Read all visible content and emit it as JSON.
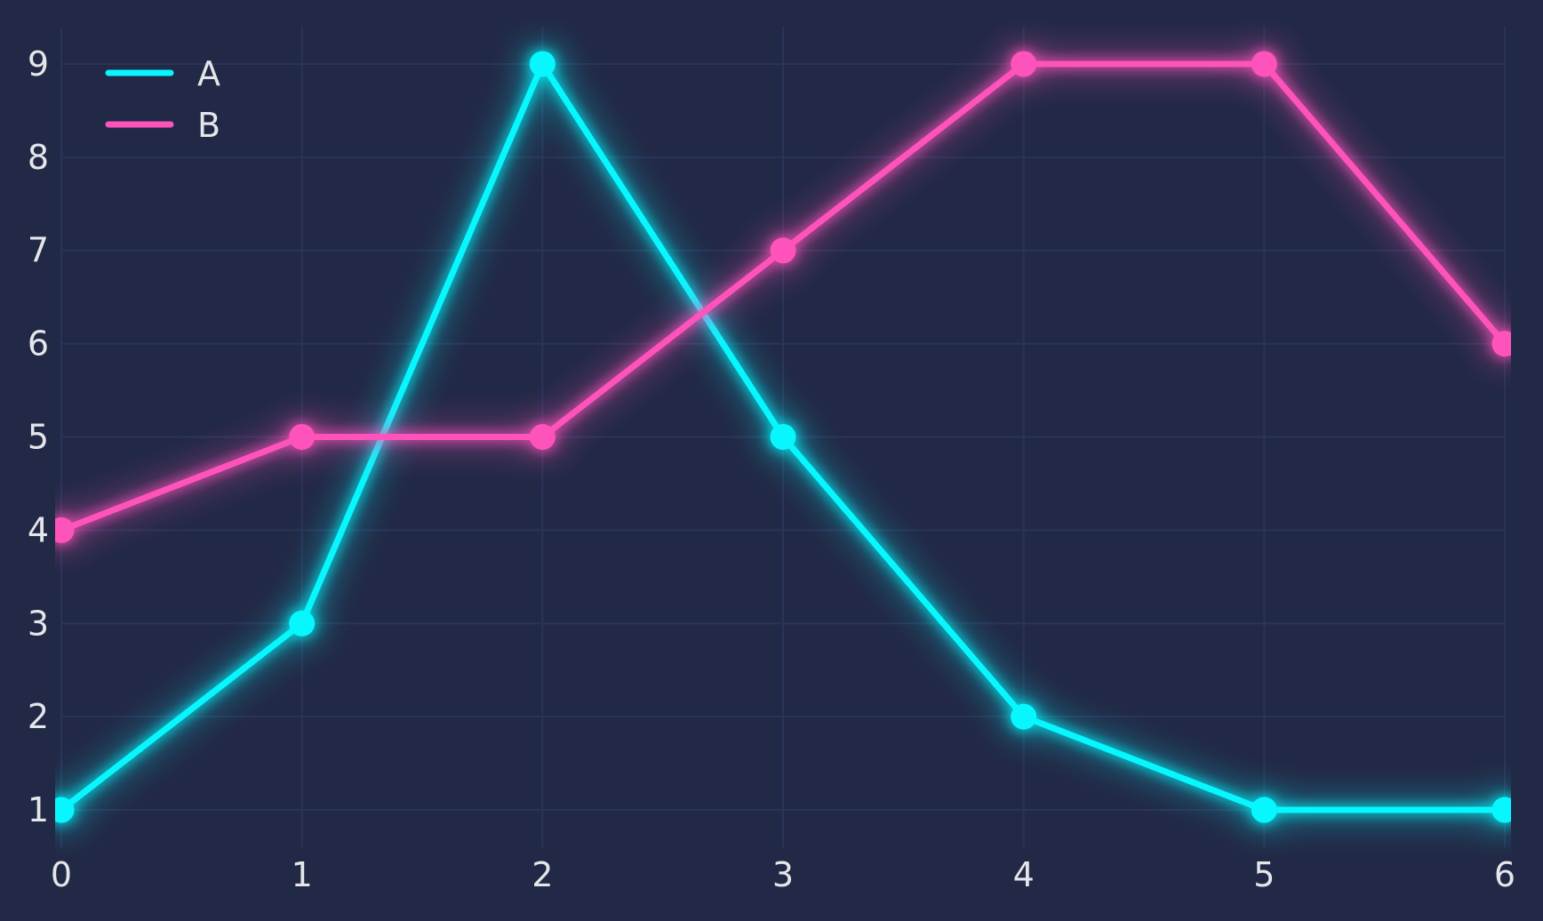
{
  "chart_data": {
    "type": "line",
    "title": "",
    "xlabel": "",
    "ylabel": "",
    "x": [
      0,
      1,
      2,
      3,
      4,
      5,
      6
    ],
    "series": [
      {
        "name": "A",
        "color": "#08F7FE",
        "values": [
          1,
          3,
          9,
          5,
          2,
          1,
          1
        ]
      },
      {
        "name": "B",
        "color": "#FE53BB",
        "values": [
          4,
          5,
          5,
          7,
          9,
          9,
          6
        ]
      }
    ],
    "xlim": [
      0,
      6
    ],
    "ylim": [
      0.6,
      9.4
    ],
    "xtick_labels": [
      "0",
      "1",
      "2",
      "3",
      "4",
      "5",
      "6"
    ],
    "ytick_values": [
      1,
      2,
      3,
      4,
      5,
      6,
      7,
      8,
      9
    ],
    "ytick_labels": [
      "1",
      "2",
      "3",
      "4",
      "5",
      "6",
      "7",
      "8",
      "9"
    ],
    "grid": true,
    "legend": {
      "position": "top-left",
      "entries": [
        "A",
        "B"
      ]
    },
    "colors": {
      "background": "#222946",
      "grid": "#2A3459",
      "tick_text": "#E5E6EA",
      "legend_text": "#E5E6EA"
    }
  }
}
